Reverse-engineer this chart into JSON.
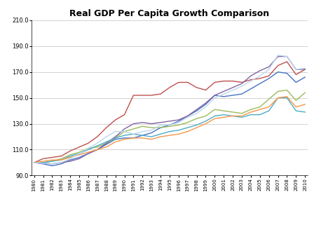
{
  "title": "Real GDP Per Capita Growth Comparison",
  "years": [
    1980,
    1981,
    1982,
    1983,
    1984,
    1985,
    1986,
    1987,
    1988,
    1989,
    1990,
    1991,
    1992,
    1993,
    1994,
    1995,
    1996,
    1997,
    1998,
    1999,
    2000,
    2001,
    2002,
    2003,
    2004,
    2005,
    2006,
    2007,
    2008,
    2009,
    2010
  ],
  "series": {
    "USA": [
      100,
      99,
      97.5,
      99,
      102,
      104,
      107,
      110,
      114,
      118,
      119,
      119,
      121,
      123,
      127,
      129,
      132,
      136,
      140,
      145,
      152,
      151,
      152,
      153,
      157,
      161,
      165,
      170,
      169,
      162,
      166
    ],
    "Japan": [
      100,
      103,
      104,
      105,
      109,
      112,
      115,
      120,
      127,
      133,
      137,
      152,
      152,
      152,
      153,
      158,
      162,
      162,
      158,
      156,
      162,
      163,
      163,
      162,
      164,
      165,
      167,
      175,
      178,
      168,
      172
    ],
    "Germany": [
      100,
      100,
      101,
      103,
      106,
      108,
      111,
      112,
      115,
      119,
      124,
      126,
      128,
      127,
      127,
      128,
      129,
      131,
      134,
      136,
      141,
      140,
      139,
      138,
      141,
      143,
      149,
      155,
      156,
      148,
      154
    ],
    "Spain": [
      100,
      99.5,
      99,
      100,
      101,
      103,
      107,
      110,
      115,
      120,
      126,
      130,
      131,
      130,
      131,
      132,
      133,
      136,
      141,
      146,
      152,
      155,
      158,
      161,
      167,
      171,
      174,
      182,
      182,
      172,
      172
    ],
    "Italy": [
      100,
      100,
      101,
      102,
      105,
      107,
      110,
      113,
      116,
      119,
      121,
      122,
      121,
      120,
      122,
      124,
      125,
      127,
      129,
      132,
      136,
      137,
      136,
      135,
      137,
      137,
      140,
      150,
      150,
      140,
      139
    ],
    "France": [
      100,
      101,
      102,
      102,
      104,
      106,
      108,
      110,
      112,
      116,
      118,
      119,
      119,
      118,
      120,
      121,
      122,
      124,
      127,
      130,
      134,
      135,
      136,
      136,
      139,
      141,
      143,
      150,
      151,
      143,
      145
    ],
    "UK": [
      100,
      99.5,
      99,
      100,
      103,
      107,
      111,
      115,
      120,
      124,
      124,
      122,
      124,
      125,
      129,
      129,
      131,
      135,
      138,
      143,
      150,
      153,
      156,
      159,
      163,
      167,
      172,
      183,
      182,
      172,
      173
    ]
  },
  "colors": {
    "USA": "#4472C4",
    "Japan": "#C0504D",
    "Germany": "#9BBB59",
    "Spain": "#8064A2",
    "Italy": "#4BACC6",
    "France": "#F79646",
    "UK": "#BDD7EE"
  },
  "ylim": [
    90,
    210
  ],
  "yticks": [
    90,
    110,
    130,
    150,
    170,
    190,
    210
  ],
  "background_color": "#FFFFFF",
  "grid_color": "#C0C0C0"
}
